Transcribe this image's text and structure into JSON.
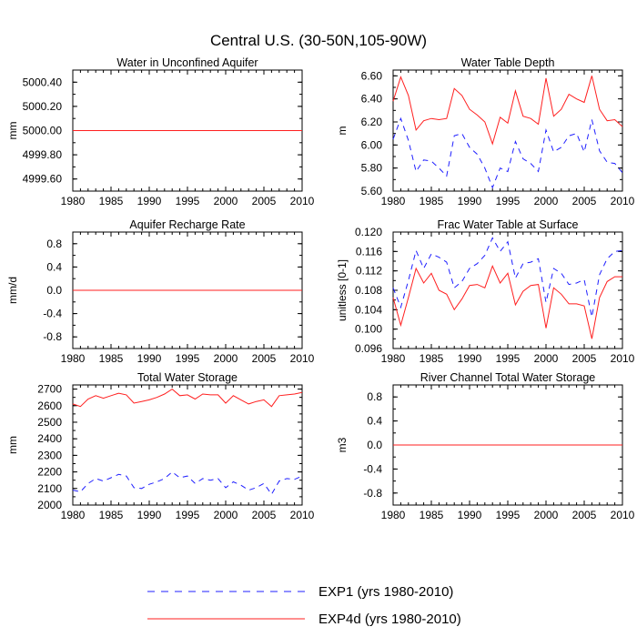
{
  "title": "Central U.S. (30-50N,105-90W)",
  "colors": {
    "exp1": "#1f1fff",
    "exp4d": "#ff1f1f",
    "axis": "#000000"
  },
  "legend": {
    "items": [
      {
        "label": "EXP1 (yrs 1980-2010)",
        "style": "dashed",
        "color": "#1f1fff"
      },
      {
        "label": "EXP4d (yrs 1980-2010)",
        "style": "solid",
        "color": "#ff1f1f"
      }
    ]
  },
  "chart_data": [
    {
      "type": "line",
      "title": "Water in Unconfined Aquifer",
      "xlabel": "",
      "ylabel": "mm",
      "xlim": [
        1980,
        2010
      ],
      "ylim": [
        4999.5,
        5000.5
      ],
      "xticks": [
        1980,
        1985,
        1990,
        1995,
        2000,
        2005,
        2010
      ],
      "yticks": [
        4999.6,
        4999.8,
        5000.0,
        5000.2,
        5000.4
      ],
      "yticklabels": [
        "4999.60",
        "4999.80",
        "5000.00",
        "5000.20",
        "5000.40"
      ],
      "x": [
        1980,
        2010
      ],
      "series": [
        {
          "name": "EXP1 (yrs 1980-2010)",
          "values": [
            5000.0,
            5000.0
          ]
        },
        {
          "name": "EXP4d (yrs 1980-2010)",
          "values": [
            5000.0,
            5000.0
          ]
        }
      ]
    },
    {
      "type": "line",
      "title": "Water Table Depth",
      "xlabel": "",
      "ylabel": "m",
      "xlim": [
        1980,
        2010
      ],
      "ylim": [
        5.6,
        6.65
      ],
      "xticks": [
        1980,
        1985,
        1990,
        1995,
        2000,
        2005,
        2010
      ],
      "yticks": [
        5.6,
        5.8,
        6.0,
        6.2,
        6.4,
        6.6
      ],
      "yticklabels": [
        "5.60",
        "5.80",
        "6.00",
        "6.20",
        "6.40",
        "6.60"
      ],
      "x": [
        1980,
        1981,
        1982,
        1983,
        1984,
        1985,
        1986,
        1987,
        1988,
        1989,
        1990,
        1991,
        1992,
        1993,
        1994,
        1995,
        1996,
        1997,
        1998,
        1999,
        2000,
        2001,
        2002,
        2003,
        2004,
        2005,
        2006,
        2007,
        2008,
        2009,
        2010
      ],
      "series": [
        {
          "name": "EXP1 (yrs 1980-2010)",
          "values": [
            6.05,
            6.23,
            6.04,
            5.77,
            5.87,
            5.86,
            5.8,
            5.73,
            6.08,
            6.1,
            5.98,
            5.92,
            5.8,
            5.63,
            5.8,
            5.77,
            6.03,
            5.88,
            5.84,
            5.77,
            6.13,
            5.94,
            5.98,
            6.08,
            6.1,
            5.94,
            6.22,
            5.95,
            5.85,
            5.84,
            5.76
          ]
        },
        {
          "name": "EXP4d (yrs 1980-2010)",
          "values": [
            6.38,
            6.59,
            6.43,
            6.13,
            6.21,
            6.23,
            6.22,
            6.23,
            6.49,
            6.43,
            6.31,
            6.26,
            6.2,
            6.01,
            6.24,
            6.19,
            6.47,
            6.25,
            6.23,
            6.18,
            6.58,
            6.25,
            6.31,
            6.44,
            6.4,
            6.37,
            6.6,
            6.31,
            6.21,
            6.22,
            6.16
          ]
        }
      ]
    },
    {
      "type": "line",
      "title": "Aquifer Recharge Rate",
      "xlabel": "",
      "ylabel": "mm/d",
      "xlim": [
        1980,
        2010
      ],
      "ylim": [
        -1.0,
        1.0
      ],
      "xticks": [
        1980,
        1985,
        1990,
        1995,
        2000,
        2005,
        2010
      ],
      "yticks": [
        -0.8,
        -0.4,
        0.0,
        0.4,
        0.8
      ],
      "yticklabels": [
        "-0.8",
        "-0.4",
        "0.0",
        "0.4",
        "0.8"
      ],
      "x": [
        1980,
        2010
      ],
      "series": [
        {
          "name": "EXP1 (yrs 1980-2010)",
          "values": [
            0.0,
            0.0
          ]
        },
        {
          "name": "EXP4d (yrs 1980-2010)",
          "values": [
            0.0,
            0.0
          ]
        }
      ]
    },
    {
      "type": "line",
      "title": "Frac Water Table at Surface",
      "xlabel": "",
      "ylabel": "unitless [0-1]",
      "xlim": [
        1980,
        2010
      ],
      "ylim": [
        0.096,
        0.12
      ],
      "xticks": [
        1980,
        1985,
        1990,
        1995,
        2000,
        2005,
        2010
      ],
      "yticks": [
        0.096,
        0.1,
        0.104,
        0.108,
        0.112,
        0.116,
        0.12
      ],
      "yticklabels": [
        "0.096",
        "0.100",
        "0.104",
        "0.108",
        "0.112",
        "0.116",
        "0.120"
      ],
      "x": [
        1980,
        1981,
        1982,
        1983,
        1984,
        1985,
        1986,
        1987,
        1988,
        1989,
        1990,
        1991,
        1992,
        1993,
        1994,
        1995,
        1996,
        1997,
        1998,
        1999,
        2000,
        2001,
        2002,
        2003,
        2004,
        2005,
        2006,
        2007,
        2008,
        2009,
        2010
      ],
      "series": [
        {
          "name": "EXP1 (yrs 1980-2010)",
          "values": [
            0.1085,
            0.1045,
            0.11,
            0.1162,
            0.1125,
            0.1155,
            0.1148,
            0.1138,
            0.1085,
            0.1098,
            0.1125,
            0.1135,
            0.1152,
            0.1188,
            0.116,
            0.118,
            0.1105,
            0.1135,
            0.1138,
            0.1145,
            0.1055,
            0.1125,
            0.1115,
            0.1092,
            0.1095,
            0.1102,
            0.1025,
            0.1112,
            0.1145,
            0.116,
            0.1162
          ]
        },
        {
          "name": "EXP4d (yrs 1980-2010)",
          "values": [
            0.1065,
            0.1008,
            0.1065,
            0.1125,
            0.1095,
            0.1115,
            0.108,
            0.1072,
            0.104,
            0.1062,
            0.109,
            0.1092,
            0.1085,
            0.113,
            0.1095,
            0.1115,
            0.105,
            0.1078,
            0.109,
            0.1092,
            0.1002,
            0.1085,
            0.1072,
            0.1052,
            0.1052,
            0.1048,
            0.098,
            0.1065,
            0.1098,
            0.1108,
            0.1108
          ]
        }
      ]
    },
    {
      "type": "line",
      "title": "Total Water Storage",
      "xlabel": "",
      "ylabel": "mm",
      "xlim": [
        1980,
        2010
      ],
      "ylim": [
        2000,
        2725
      ],
      "xticks": [
        1980,
        1985,
        1990,
        1995,
        2000,
        2005,
        2010
      ],
      "yticks": [
        2000,
        2100,
        2200,
        2300,
        2400,
        2500,
        2600,
        2700
      ],
      "yticklabels": [
        "2000",
        "2100",
        "2200",
        "2300",
        "2400",
        "2500",
        "2600",
        "2700"
      ],
      "x": [
        1980,
        1981,
        1982,
        1983,
        1984,
        1985,
        1986,
        1987,
        1988,
        1989,
        1990,
        1991,
        1992,
        1993,
        1994,
        1995,
        1996,
        1997,
        1998,
        1999,
        2000,
        2001,
        2002,
        2003,
        2004,
        2005,
        2006,
        2007,
        2008,
        2009,
        2010
      ],
      "series": [
        {
          "name": "EXP1 (yrs 1980-2010)",
          "values": [
            2090,
            2080,
            2130,
            2160,
            2145,
            2165,
            2185,
            2175,
            2105,
            2100,
            2125,
            2140,
            2160,
            2200,
            2165,
            2175,
            2130,
            2160,
            2150,
            2160,
            2105,
            2140,
            2120,
            2090,
            2105,
            2130,
            2065,
            2145,
            2160,
            2155,
            2175
          ]
        },
        {
          "name": "EXP4d (yrs 1980-2010)",
          "values": [
            2610,
            2595,
            2640,
            2660,
            2645,
            2660,
            2675,
            2665,
            2615,
            2625,
            2635,
            2650,
            2670,
            2700,
            2660,
            2665,
            2640,
            2670,
            2665,
            2665,
            2615,
            2660,
            2635,
            2610,
            2625,
            2635,
            2595,
            2660,
            2665,
            2670,
            2680
          ]
        }
      ]
    },
    {
      "type": "line",
      "title": "River Channel Total Water Storage",
      "xlabel": "",
      "ylabel": "m3",
      "xlim": [
        1980,
        2010
      ],
      "ylim": [
        -1.0,
        1.0
      ],
      "xticks": [
        1980,
        1985,
        1990,
        1995,
        2000,
        2005,
        2010
      ],
      "yticks": [
        -0.8,
        -0.4,
        0.0,
        0.4,
        0.8
      ],
      "yticklabels": [
        "-0.8",
        "-0.4",
        "0.0",
        "0.4",
        "0.8"
      ],
      "x": [
        1980,
        2010
      ],
      "series": [
        {
          "name": "EXP1 (yrs 1980-2010)",
          "values": [
            0.0,
            0.0
          ]
        },
        {
          "name": "EXP4d (yrs 1980-2010)",
          "values": [
            0.0,
            0.0
          ]
        }
      ]
    }
  ]
}
